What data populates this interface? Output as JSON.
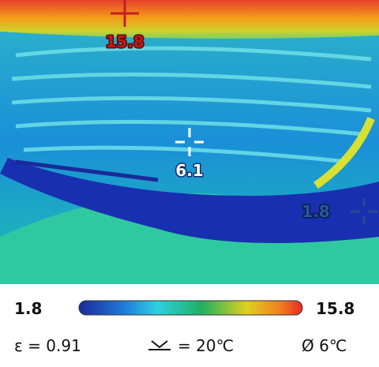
{
  "markers": [
    {
      "kind": "hot",
      "label": "15.8"
    },
    {
      "kind": "center",
      "label": "6.1"
    },
    {
      "kind": "cold",
      "label": "1.8"
    }
  ],
  "scale": {
    "min": "1.8",
    "max": "15.8"
  },
  "status": {
    "emissivity": "ε = 0.91",
    "reflected": "= 20℃",
    "distance": "Ø 6℃"
  }
}
